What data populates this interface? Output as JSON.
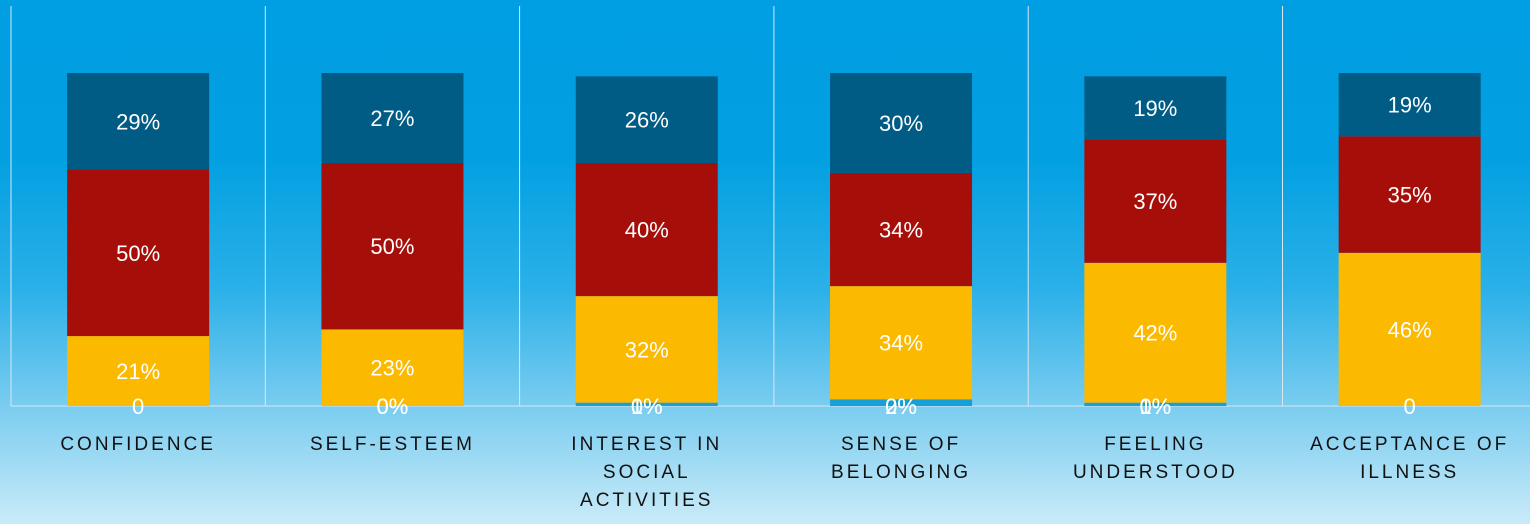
{
  "chart_data": {
    "type": "bar",
    "stacked": true,
    "orientation": "vertical",
    "ylim": [
      0,
      100
    ],
    "grid": false,
    "legend": "none",
    "categories": [
      [
        "CONFIDENCE"
      ],
      [
        "SELF-ESTEEM"
      ],
      [
        "INTEREST IN",
        "SOCIAL",
        "ACTIVITIES"
      ],
      [
        "SENSE OF",
        "BELONGING"
      ],
      [
        "FEELING",
        "UNDERSTOOD"
      ],
      [
        "ACCEPTANCE OF",
        "ILLNESS"
      ]
    ],
    "series": [
      {
        "color": "#179fd8",
        "values": [
          0,
          0,
          1,
          2,
          1,
          0
        ],
        "labels": [
          "0",
          "0%",
          "1%",
          "2%",
          "1%",
          "0"
        ]
      },
      {
        "color": "#00afd6",
        "values": [
          0,
          0,
          0,
          0,
          0,
          0
        ],
        "labels": [
          "",
          "0%",
          "0%",
          "0%",
          "0%",
          ""
        ]
      },
      {
        "color": "#fbb900",
        "values": [
          21,
          23,
          32,
          34,
          42,
          46
        ],
        "labels": [
          "21%",
          "23%",
          "32%",
          "34%",
          "42%",
          "46%"
        ]
      },
      {
        "color": "#a60f09",
        "values": [
          50,
          50,
          40,
          34,
          37,
          35
        ],
        "labels": [
          "50%",
          "50%",
          "40%",
          "34%",
          "37%",
          "35%"
        ]
      },
      {
        "color": "#005b85",
        "values": [
          29,
          27,
          26,
          30,
          19,
          19
        ],
        "labels": [
          "29%",
          "27%",
          "26%",
          "30%",
          "19%",
          "19%"
        ]
      }
    ]
  }
}
